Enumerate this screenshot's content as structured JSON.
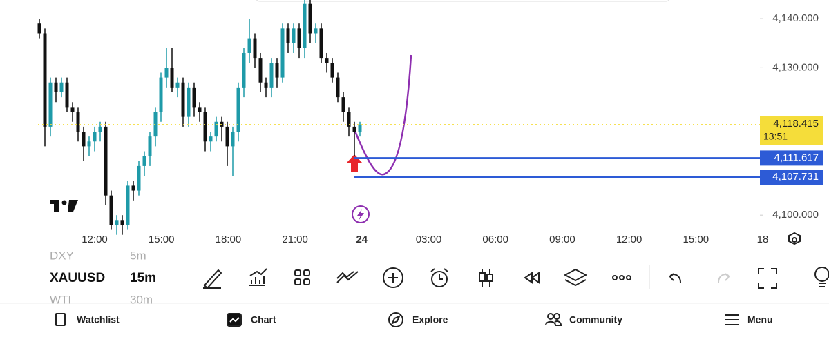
{
  "chart_data": {
    "type": "candlestick",
    "open": [
      4139,
      4137,
      4118,
      4127,
      4125,
      4127,
      4122,
      4121,
      4117,
      4114,
      4115,
      4117,
      4118,
      4104,
      4098,
      4099,
      4098,
      4106,
      4105,
      4110,
      4112,
      4116,
      4121,
      4128,
      4130,
      4126,
      4127,
      4120,
      4126,
      4122,
      4121,
      4115,
      4116,
      4119,
      4118,
      4114,
      4117,
      4126,
      4133,
      4136,
      4132,
      4127,
      4126,
      4131,
      4128,
      4138,
      4135,
      4138,
      4134,
      4143,
      4137,
      4138,
      4132,
      4131,
      4128,
      4124,
      4121,
      4118,
      4117
    ],
    "high": [
      4140,
      4138,
      4128,
      4128,
      4128,
      4128,
      4123,
      4122,
      4118,
      4116,
      4118,
      4119,
      4119,
      4105,
      4100,
      4100,
      4107,
      4107,
      4111,
      4113,
      4117,
      4122,
      4129,
      4134,
      4134,
      4128,
      4128,
      4127,
      4127,
      4123,
      4122,
      4117,
      4120,
      4120,
      4119,
      4118,
      4127,
      4134,
      4140,
      4137,
      4133,
      4128,
      4132,
      4132,
      4139,
      4139,
      4139,
      4139,
      4144,
      4144,
      4139,
      4139,
      4133,
      4132,
      4129,
      4125,
      4122,
      4119,
      4119
    ],
    "low": [
      4136,
      4114,
      4116,
      4123,
      4124,
      4121,
      4119,
      4115,
      4111,
      4112,
      4113,
      4115,
      4102,
      4097,
      4096,
      4096,
      4097,
      4103,
      4104,
      4108,
      4110,
      4114,
      4119,
      4126,
      4125,
      4124,
      4118,
      4118,
      4120,
      4119,
      4113,
      4113,
      4115,
      4115,
      4110,
      4108,
      4115,
      4124,
      4131,
      4130,
      4125,
      4124,
      4124,
      4126,
      4127,
      4133,
      4133,
      4132,
      4132,
      4135,
      4135,
      4131,
      4129,
      4127,
      4123,
      4119,
      4116,
      4112,
      4116
    ],
    "close": [
      4137,
      4118,
      4127,
      4125,
      4127,
      4122,
      4121,
      4117,
      4114,
      4115,
      4117,
      4118,
      4104,
      4098,
      4099,
      4098,
      4106,
      4105,
      4110,
      4112,
      4116,
      4121,
      4128,
      4130,
      4126,
      4127,
      4120,
      4126,
      4122,
      4121,
      4115,
      4116,
      4119,
      4118,
      4114,
      4117,
      4126,
      4133,
      4136,
      4132,
      4127,
      4126,
      4131,
      4128,
      4138,
      4135,
      4138,
      4134,
      4143,
      4137,
      4138,
      4132,
      4131,
      4128,
      4124,
      4121,
      4118,
      4117,
      4118.415
    ],
    "up_color": "#1e9aa8",
    "down_color": "#111111",
    "ylim": [
      4097.5,
      4143.8
    ],
    "yticks": [
      {
        "value": 4100,
        "label": "4,100.000"
      },
      {
        "value": 4130,
        "label": "4,130.000"
      },
      {
        "value": 4140,
        "label": "4,140.000"
      }
    ],
    "x_labels": [
      "12:00",
      "15:00",
      "18:00",
      "21:00",
      "24",
      "03:00",
      "06:00",
      "09:00",
      "12:00",
      "15:00",
      "18"
    ],
    "last_price": {
      "value": 4118.415,
      "label": "4,118.415",
      "countdown": "13:51",
      "color": "#f5dd3a"
    },
    "levels": [
      {
        "value": 4111.617,
        "label": "4,111.617",
        "color": "#2d5bd6"
      },
      {
        "value": 4107.731,
        "label": "4,107.731",
        "color": "#2d5bd6"
      }
    ]
  },
  "toolbar": {
    "symbols": [
      {
        "symbol": "DXY",
        "interval": "5m"
      },
      {
        "symbol": "XAUUSD",
        "interval": "15m"
      },
      {
        "symbol": "WTI",
        "interval": "30m"
      }
    ]
  },
  "nav": [
    "Watchlist",
    "Chart",
    "Explore",
    "Community",
    "Menu"
  ]
}
